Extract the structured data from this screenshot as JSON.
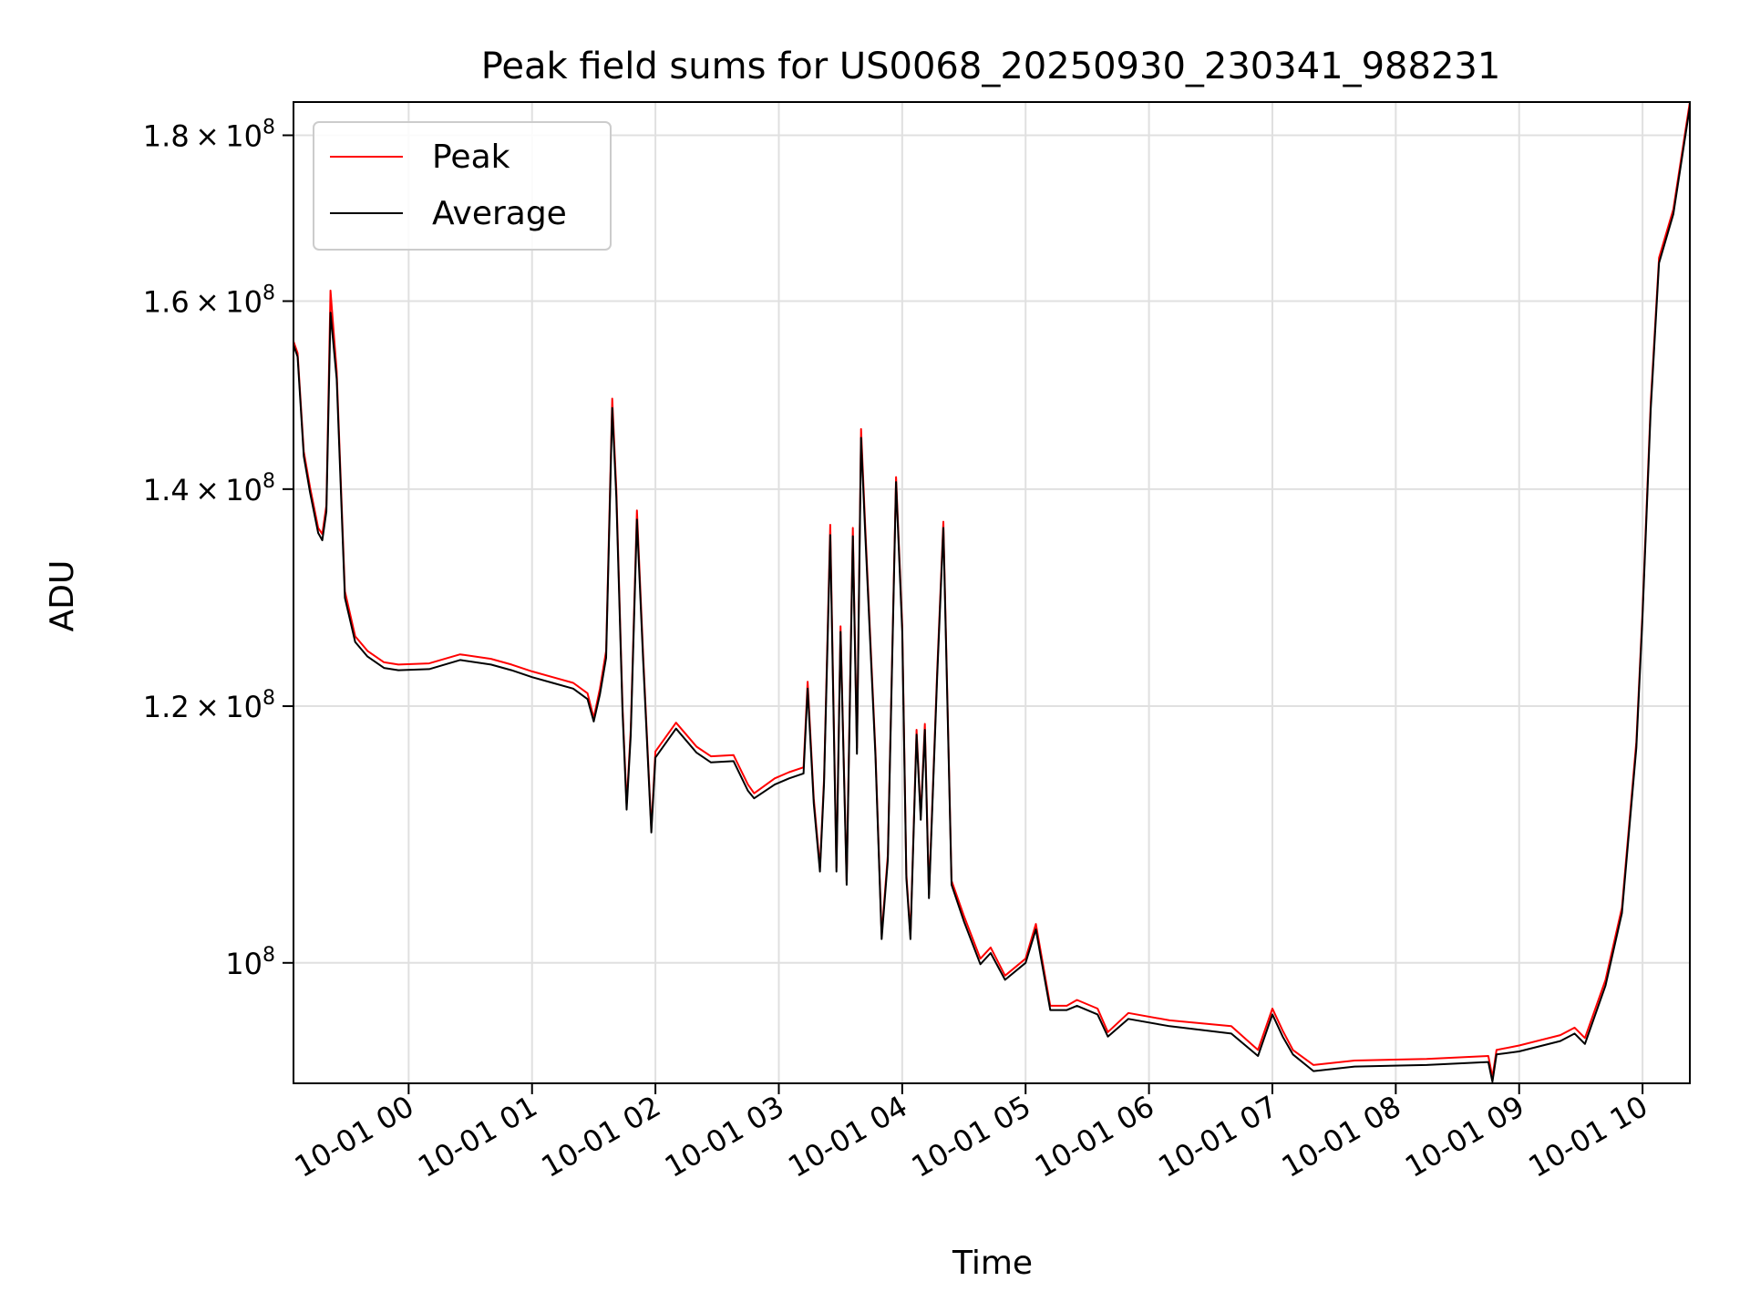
{
  "chart_data": {
    "type": "line",
    "title": "Peak field sums for US0068_20250930_230341_988231",
    "xlabel": "Time",
    "ylabel": "ADU",
    "y_scale": "log",
    "grid": true,
    "legend_position": "top-left",
    "xlim": [
      "2025-09-30 23:04",
      "2025-10-01 10:23"
    ],
    "ylim": [
      91800000,
      184300000
    ],
    "x_ticks": [
      {
        "value": "2025-10-01 00:00",
        "label": "10-01 00"
      },
      {
        "value": "2025-10-01 01:00",
        "label": "10-01 01"
      },
      {
        "value": "2025-10-01 02:00",
        "label": "10-01 02"
      },
      {
        "value": "2025-10-01 03:00",
        "label": "10-01 03"
      },
      {
        "value": "2025-10-01 04:00",
        "label": "10-01 04"
      },
      {
        "value": "2025-10-01 05:00",
        "label": "10-01 05"
      },
      {
        "value": "2025-10-01 06:00",
        "label": "10-01 06"
      },
      {
        "value": "2025-10-01 07:00",
        "label": "10-01 07"
      },
      {
        "value": "2025-10-01 08:00",
        "label": "10-01 08"
      },
      {
        "value": "2025-10-01 09:00",
        "label": "10-01 09"
      },
      {
        "value": "2025-10-01 10:00",
        "label": "10-01 10"
      }
    ],
    "y_ticks": [
      {
        "value": 100000000,
        "mantissa": "",
        "exponent": "8"
      },
      {
        "value": 120000000,
        "mantissa": "1.2",
        "exponent": "8"
      },
      {
        "value": 140000000,
        "mantissa": "1.4",
        "exponent": "8"
      },
      {
        "value": 160000000,
        "mantissa": "1.6",
        "exponent": "8"
      },
      {
        "value": 180000000,
        "mantissa": "1.8",
        "exponent": "8"
      }
    ],
    "series": [
      {
        "name": "Peak",
        "color": "#ff0000",
        "points": [
          [
            "2025-09-30 23:04",
            155500000
          ],
          [
            "2025-09-30 23:06",
            154200000
          ],
          [
            "2025-09-30 23:09",
            143800000
          ],
          [
            "2025-09-30 23:12",
            140200000
          ],
          [
            "2025-09-30 23:16",
            136200000
          ],
          [
            "2025-09-30 23:18",
            135600000
          ],
          [
            "2025-09-30 23:20",
            138400000
          ],
          [
            "2025-09-30 23:22",
            161200000
          ],
          [
            "2025-09-30 23:25",
            152200000
          ],
          [
            "2025-09-30 23:29",
            130200000
          ],
          [
            "2025-09-30 23:34",
            126100000
          ],
          [
            "2025-09-30 23:40",
            124800000
          ],
          [
            "2025-09-30 23:48",
            123800000
          ],
          [
            "2025-09-30 23:55",
            123600000
          ],
          [
            "2025-10-01 00:10",
            123700000
          ],
          [
            "2025-10-01 00:25",
            124500000
          ],
          [
            "2025-10-01 00:40",
            124100000
          ],
          [
            "2025-10-01 00:50",
            123600000
          ],
          [
            "2025-10-01 01:00",
            123000000
          ],
          [
            "2025-10-01 01:10",
            122500000
          ],
          [
            "2025-10-01 01:20",
            122000000
          ],
          [
            "2025-10-01 01:27",
            121100000
          ],
          [
            "2025-10-01 01:30",
            119000000
          ],
          [
            "2025-10-01 01:33",
            121500000
          ],
          [
            "2025-10-01 01:36",
            124800000
          ],
          [
            "2025-10-01 01:39",
            149300000
          ],
          [
            "2025-10-01 01:41",
            140000000
          ],
          [
            "2025-10-01 01:44",
            120000000
          ],
          [
            "2025-10-01 01:46",
            111900000
          ],
          [
            "2025-10-01 01:48",
            118000000
          ],
          [
            "2025-10-01 01:51",
            137900000
          ],
          [
            "2025-10-01 01:54",
            124500000
          ],
          [
            "2025-10-01 01:58",
            110000000
          ],
          [
            "2025-10-01 02:00",
            116200000
          ],
          [
            "2025-10-01 02:10",
            118600000
          ],
          [
            "2025-10-01 02:20",
            116600000
          ],
          [
            "2025-10-01 02:27",
            115800000
          ],
          [
            "2025-10-01 02:38",
            115900000
          ],
          [
            "2025-10-01 02:45",
            113500000
          ],
          [
            "2025-10-01 02:48",
            112800000
          ],
          [
            "2025-10-01 02:58",
            114000000
          ],
          [
            "2025-10-01 03:05",
            114500000
          ],
          [
            "2025-10-01 03:12",
            114900000
          ],
          [
            "2025-10-01 03:14",
            122100000
          ],
          [
            "2025-10-01 03:17",
            112400000
          ],
          [
            "2025-10-01 03:20",
            107000000
          ],
          [
            "2025-10-01 03:22",
            114000000
          ],
          [
            "2025-10-01 03:25",
            136500000
          ],
          [
            "2025-10-01 03:28",
            107000000
          ],
          [
            "2025-10-01 03:30",
            127000000
          ],
          [
            "2025-10-01 03:33",
            106000000
          ],
          [
            "2025-10-01 03:36",
            136200000
          ],
          [
            "2025-10-01 03:38",
            116500000
          ],
          [
            "2025-10-01 03:40",
            146100000
          ],
          [
            "2025-10-01 03:42",
            136500000
          ],
          [
            "2025-10-01 03:47",
            116200000
          ],
          [
            "2025-10-01 03:50",
            102000000
          ],
          [
            "2025-10-01 03:53",
            108000000
          ],
          [
            "2025-10-01 03:57",
            141200000
          ],
          [
            "2025-10-01 04:00",
            127000000
          ],
          [
            "2025-10-01 04:02",
            106500000
          ],
          [
            "2025-10-01 04:04",
            102000000
          ],
          [
            "2025-10-01 04:07",
            118000000
          ],
          [
            "2025-10-01 04:09",
            111000000
          ],
          [
            "2025-10-01 04:11",
            118500000
          ],
          [
            "2025-10-01 04:13",
            105000000
          ],
          [
            "2025-10-01 04:17",
            123000000
          ],
          [
            "2025-10-01 04:20",
            136800000
          ],
          [
            "2025-10-01 04:24",
            106000000
          ],
          [
            "2025-10-01 04:30",
            103400000
          ],
          [
            "2025-10-01 04:38",
            100300000
          ],
          [
            "2025-10-01 04:43",
            101100000
          ],
          [
            "2025-10-01 04:50",
            99100000
          ],
          [
            "2025-10-01 05:00",
            100300000
          ],
          [
            "2025-10-01 05:05",
            102800000
          ],
          [
            "2025-10-01 05:12",
            97000000
          ],
          [
            "2025-10-01 05:20",
            97000000
          ],
          [
            "2025-10-01 05:25",
            97400000
          ],
          [
            "2025-10-01 05:35",
            96800000
          ],
          [
            "2025-10-01 05:40",
            95200000
          ],
          [
            "2025-10-01 05:50",
            96500000
          ],
          [
            "2025-10-01 06:10",
            96000000
          ],
          [
            "2025-10-01 06:40",
            95600000
          ],
          [
            "2025-10-01 06:53",
            94000000
          ],
          [
            "2025-10-01 07:00",
            96800000
          ],
          [
            "2025-10-01 07:05",
            95300000
          ],
          [
            "2025-10-01 07:10",
            94000000
          ],
          [
            "2025-10-01 07:20",
            93000000
          ],
          [
            "2025-10-01 07:40",
            93300000
          ],
          [
            "2025-10-01 08:15",
            93400000
          ],
          [
            "2025-10-01 08:45",
            93600000
          ],
          [
            "2025-10-01 08:47",
            92200000
          ],
          [
            "2025-10-01 08:49",
            94000000
          ],
          [
            "2025-10-01 09:00",
            94300000
          ],
          [
            "2025-10-01 09:20",
            95000000
          ],
          [
            "2025-10-01 09:27",
            95500000
          ],
          [
            "2025-10-01 09:32",
            94800000
          ],
          [
            "2025-10-01 09:42",
            98800000
          ],
          [
            "2025-10-01 09:50",
            104000000
          ],
          [
            "2025-10-01 09:57",
            117000000
          ],
          [
            "2025-10-01 10:00",
            128400000
          ],
          [
            "2025-10-01 10:04",
            148900000
          ],
          [
            "2025-10-01 10:08",
            165000000
          ],
          [
            "2025-10-01 10:15",
            170800000
          ],
          [
            "2025-10-01 10:23",
            184300000
          ]
        ]
      },
      {
        "name": "Average",
        "color": "#000000",
        "points": [
          [
            "2025-09-30 23:04",
            155100000
          ],
          [
            "2025-09-30 23:06",
            153800000
          ],
          [
            "2025-09-30 23:09",
            143300000
          ],
          [
            "2025-09-30 23:12",
            139700000
          ],
          [
            "2025-09-30 23:16",
            135700000
          ],
          [
            "2025-09-30 23:18",
            135000000
          ],
          [
            "2025-09-30 23:20",
            137800000
          ],
          [
            "2025-09-30 23:22",
            158700000
          ],
          [
            "2025-09-30 23:25",
            151400000
          ],
          [
            "2025-09-30 23:29",
            129600000
          ],
          [
            "2025-09-30 23:34",
            125600000
          ],
          [
            "2025-09-30 23:40",
            124300000
          ],
          [
            "2025-09-30 23:48",
            123300000
          ],
          [
            "2025-09-30 23:55",
            123100000
          ],
          [
            "2025-10-01 00:10",
            123200000
          ],
          [
            "2025-10-01 00:25",
            124000000
          ],
          [
            "2025-10-01 00:40",
            123600000
          ],
          [
            "2025-10-01 00:50",
            123100000
          ],
          [
            "2025-10-01 01:00",
            122500000
          ],
          [
            "2025-10-01 01:10",
            122000000
          ],
          [
            "2025-10-01 01:20",
            121500000
          ],
          [
            "2025-10-01 01:27",
            120600000
          ],
          [
            "2025-10-01 01:30",
            118700000
          ],
          [
            "2025-10-01 01:33",
            121000000
          ],
          [
            "2025-10-01 01:36",
            124200000
          ],
          [
            "2025-10-01 01:39",
            148300000
          ],
          [
            "2025-10-01 01:41",
            139200000
          ],
          [
            "2025-10-01 01:44",
            119500000
          ],
          [
            "2025-10-01 01:46",
            111500000
          ],
          [
            "2025-10-01 01:48",
            117500000
          ],
          [
            "2025-10-01 01:51",
            137000000
          ],
          [
            "2025-10-01 01:54",
            124000000
          ],
          [
            "2025-10-01 01:58",
            109700000
          ],
          [
            "2025-10-01 02:00",
            115700000
          ],
          [
            "2025-10-01 02:10",
            118100000
          ],
          [
            "2025-10-01 02:20",
            116100000
          ],
          [
            "2025-10-01 02:27",
            115300000
          ],
          [
            "2025-10-01 02:38",
            115400000
          ],
          [
            "2025-10-01 02:45",
            113000000
          ],
          [
            "2025-10-01 02:48",
            112400000
          ],
          [
            "2025-10-01 02:58",
            113500000
          ],
          [
            "2025-10-01 03:05",
            114000000
          ],
          [
            "2025-10-01 03:12",
            114400000
          ],
          [
            "2025-10-01 03:14",
            121500000
          ],
          [
            "2025-10-01 03:17",
            112000000
          ],
          [
            "2025-10-01 03:20",
            106700000
          ],
          [
            "2025-10-01 03:22",
            113600000
          ],
          [
            "2025-10-01 03:25",
            135500000
          ],
          [
            "2025-10-01 03:28",
            106700000
          ],
          [
            "2025-10-01 03:30",
            126500000
          ],
          [
            "2025-10-01 03:33",
            105700000
          ],
          [
            "2025-10-01 03:36",
            135400000
          ],
          [
            "2025-10-01 03:38",
            116000000
          ],
          [
            "2025-10-01 03:40",
            145200000
          ],
          [
            "2025-10-01 03:42",
            135800000
          ],
          [
            "2025-10-01 03:47",
            115800000
          ],
          [
            "2025-10-01 03:50",
            101700000
          ],
          [
            "2025-10-01 03:53",
            107600000
          ],
          [
            "2025-10-01 03:57",
            140700000
          ],
          [
            "2025-10-01 04:00",
            126500000
          ],
          [
            "2025-10-01 04:02",
            106200000
          ],
          [
            "2025-10-01 04:04",
            101700000
          ],
          [
            "2025-10-01 04:07",
            117600000
          ],
          [
            "2025-10-01 04:09",
            110700000
          ],
          [
            "2025-10-01 04:11",
            118000000
          ],
          [
            "2025-10-01 04:13",
            104700000
          ],
          [
            "2025-10-01 04:17",
            122500000
          ],
          [
            "2025-10-01 04:20",
            136200000
          ],
          [
            "2025-10-01 04:24",
            105700000
          ],
          [
            "2025-10-01 04:30",
            103000000
          ],
          [
            "2025-10-01 04:38",
            99900000
          ],
          [
            "2025-10-01 04:43",
            100700000
          ],
          [
            "2025-10-01 04:50",
            98800000
          ],
          [
            "2025-10-01 05:00",
            100000000
          ],
          [
            "2025-10-01 05:05",
            102400000
          ],
          [
            "2025-10-01 05:12",
            96700000
          ],
          [
            "2025-10-01 05:20",
            96700000
          ],
          [
            "2025-10-01 05:25",
            97000000
          ],
          [
            "2025-10-01 05:35",
            96400000
          ],
          [
            "2025-10-01 05:40",
            94900000
          ],
          [
            "2025-10-01 05:50",
            96100000
          ],
          [
            "2025-10-01 06:10",
            95600000
          ],
          [
            "2025-10-01 06:40",
            95100000
          ],
          [
            "2025-10-01 06:53",
            93600000
          ],
          [
            "2025-10-01 07:00",
            96400000
          ],
          [
            "2025-10-01 07:05",
            94900000
          ],
          [
            "2025-10-01 07:10",
            93700000
          ],
          [
            "2025-10-01 07:20",
            92600000
          ],
          [
            "2025-10-01 07:40",
            92900000
          ],
          [
            "2025-10-01 08:15",
            93000000
          ],
          [
            "2025-10-01 08:45",
            93200000
          ],
          [
            "2025-10-01 08:47",
            91900000
          ],
          [
            "2025-10-01 08:49",
            93700000
          ],
          [
            "2025-10-01 09:00",
            93900000
          ],
          [
            "2025-10-01 09:20",
            94600000
          ],
          [
            "2025-10-01 09:27",
            95100000
          ],
          [
            "2025-10-01 09:32",
            94400000
          ],
          [
            "2025-10-01 09:42",
            98400000
          ],
          [
            "2025-10-01 09:50",
            103600000
          ],
          [
            "2025-10-01 09:57",
            116500000
          ],
          [
            "2025-10-01 10:00",
            127900000
          ],
          [
            "2025-10-01 10:04",
            148200000
          ],
          [
            "2025-10-01 10:08",
            164400000
          ],
          [
            "2025-10-01 10:15",
            170200000
          ],
          [
            "2025-10-01 10:23",
            183700000
          ]
        ]
      }
    ]
  }
}
